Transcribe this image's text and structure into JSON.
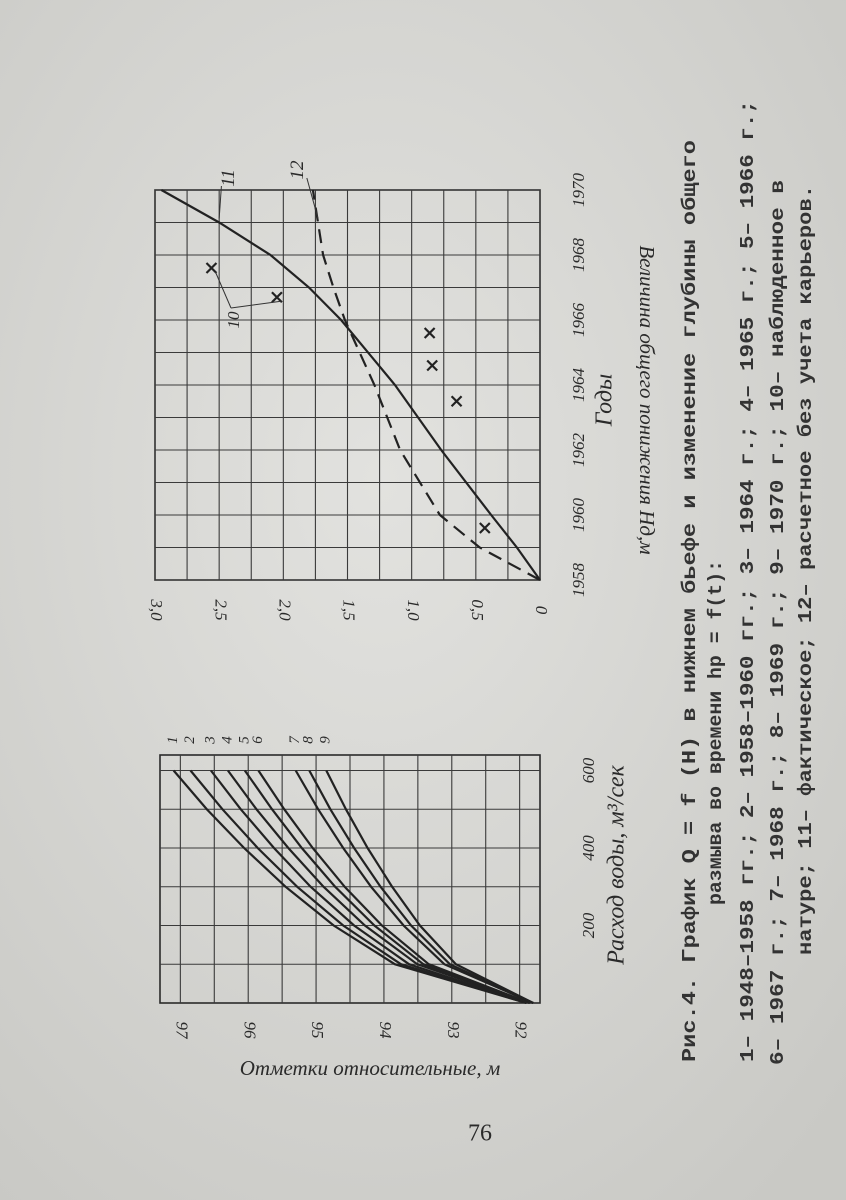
{
  "chart_data": [
    {
      "type": "line",
      "x_label": "Расход воды, м³/сек",
      "y_label": "Отметки относительные, м",
      "x": [
        0,
        100,
        200,
        300,
        400,
        500,
        600
      ],
      "xlim": [
        0,
        640
      ],
      "xticks": [
        200,
        400,
        600
      ],
      "minor_xticks": [
        100,
        300,
        500
      ],
      "ylim": [
        91.7,
        97.3
      ],
      "yticks": [
        92,
        93,
        94,
        95,
        96,
        97
      ],
      "minor_yticks": [
        92.5,
        93.5,
        94.5,
        95.5,
        96.5
      ],
      "grid": true,
      "series": [
        {
          "name": "1",
          "color": "#222222",
          "values": [
            91.9,
            93.84,
            94.74,
            95.45,
            96.06,
            96.61,
            97.1
          ]
        },
        {
          "name": "2",
          "color": "#222222",
          "values": [
            91.9,
            93.75,
            94.6,
            95.28,
            95.86,
            96.38,
            96.85
          ]
        },
        {
          "name": "3",
          "color": "#222222",
          "values": [
            91.9,
            93.63,
            94.44,
            95.08,
            95.62,
            96.11,
            96.55
          ]
        },
        {
          "name": "4",
          "color": "#222222",
          "values": [
            91.85,
            93.51,
            94.28,
            94.89,
            95.41,
            95.88,
            96.3
          ]
        },
        {
          "name": "5",
          "color": "#222222",
          "values": [
            91.85,
            93.42,
            94.14,
            94.72,
            95.21,
            95.65,
            96.05
          ]
        },
        {
          "name": "6",
          "color": "#222222",
          "values": [
            91.85,
            93.34,
            94.03,
            94.58,
            95.05,
            95.47,
            95.85
          ]
        },
        {
          "name": "7",
          "color": "#222222",
          "values": [
            91.8,
            93.11,
            93.71,
            94.19,
            94.6,
            94.97,
            95.3
          ]
        },
        {
          "name": "8",
          "color": "#222222",
          "values": [
            91.8,
            93.03,
            93.6,
            94.05,
            94.44,
            94.79,
            95.1
          ]
        },
        {
          "name": "9",
          "color": "#222222",
          "values": [
            91.8,
            92.94,
            93.47,
            93.88,
            94.24,
            94.56,
            94.85
          ]
        }
      ]
    },
    {
      "type": "line",
      "x_label": "Годы",
      "y_label": "Величина общего понижения Hд,м",
      "x": [
        1958,
        1959,
        1960,
        1962,
        1964,
        1966,
        1967,
        1968,
        1969,
        1970
      ],
      "xlim": [
        1958,
        1970
      ],
      "xticks": [
        1958,
        1960,
        1962,
        1964,
        1966,
        1968,
        1970
      ],
      "minor_xticks": [
        1959,
        1961,
        1963,
        1965,
        1967,
        1969
      ],
      "ylim": [
        0,
        3
      ],
      "yticks": [
        0,
        {
          "value": 0.5,
          "label": "0,5"
        },
        {
          "value": 1,
          "label": "1,0"
        },
        {
          "value": 1.5,
          "label": "1,5"
        },
        {
          "value": 2,
          "label": "2,0"
        },
        {
          "value": 2.5,
          "label": "2,5"
        },
        {
          "value": 3,
          "label": "3,0"
        }
      ],
      "minor_yticks": [
        0.25,
        0.75,
        1.25,
        1.75,
        2.25,
        2.75
      ],
      "grid": true,
      "series": [
        {
          "name": "11",
          "color": "#222222",
          "values": [
            0,
            0.18,
            0.38,
            0.77,
            1.13,
            1.55,
            1.8,
            2.1,
            2.5,
            2.95
          ]
        },
        {
          "name": "12",
          "color": "#222222",
          "dash": true,
          "values": [
            0,
            0.47,
            0.78,
            1.09,
            1.29,
            1.52,
            1.61,
            1.69,
            1.73,
            1.77
          ]
        },
        {
          "name": "10",
          "type": "scatter",
          "color": "#222222",
          "x": [
            1959.6,
            1963.5,
            1964.6,
            1965.6,
            1966.7,
            1967.6
          ],
          "values": [
            0.43,
            0.65,
            0.84,
            0.86,
            2.05,
            2.56
          ]
        }
      ]
    }
  ],
  "caption": [
    "Рис.4. График  Q = f (H)  в нижнем бьефе и изменение глубины общего",
    "размыва во времени  hр = f(t):",
    "1– 1948–1958 гг.; 2– 1958–1960 гг.; 3– 1964 г.; 4– 1965 г.; 5– 1966 г.;",
    "6– 1967 г.; 7– 1968 г.; 8– 1969 г.; 9– 1970 г.; 10– наблюденное в",
    "натуре; 11– фактическое; 12– расчетное без учета карьеров."
  ],
  "page_number": "76"
}
